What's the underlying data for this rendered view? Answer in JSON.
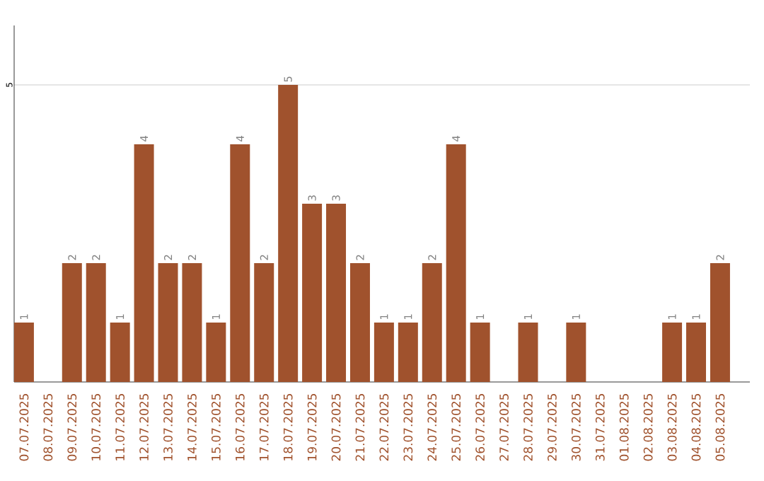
{
  "chart_data": {
    "type": "bar",
    "categories": [
      "07.07.2025",
      "08.07.2025",
      "09.07.2025",
      "10.07.2025",
      "11.07.2025",
      "12.07.2025",
      "13.07.2025",
      "14.07.2025",
      "15.07.2025",
      "16.07.2025",
      "17.07.2025",
      "18.07.2025",
      "19.07.2025",
      "20.07.2025",
      "21.07.2025",
      "22.07.2025",
      "23.07.2025",
      "24.07.2025",
      "25.07.2025",
      "26.07.2025",
      "27.07.2025",
      "28.07.2025",
      "29.07.2025",
      "30.07.2025",
      "31.07.2025",
      "01.08.2025",
      "02.08.2025",
      "03.08.2025",
      "04.08.2025",
      "05.08.2025"
    ],
    "values": [
      1,
      null,
      2,
      2,
      1,
      4,
      2,
      2,
      1,
      4,
      2,
      5,
      3,
      3,
      2,
      1,
      1,
      2,
      4,
      1,
      null,
      1,
      null,
      1,
      null,
      null,
      null,
      1,
      1,
      2
    ],
    "color": "#a0522d",
    "ylim": [
      0,
      6
    ],
    "yticks": [
      5
    ],
    "grid": "y",
    "data_labels": true
  }
}
